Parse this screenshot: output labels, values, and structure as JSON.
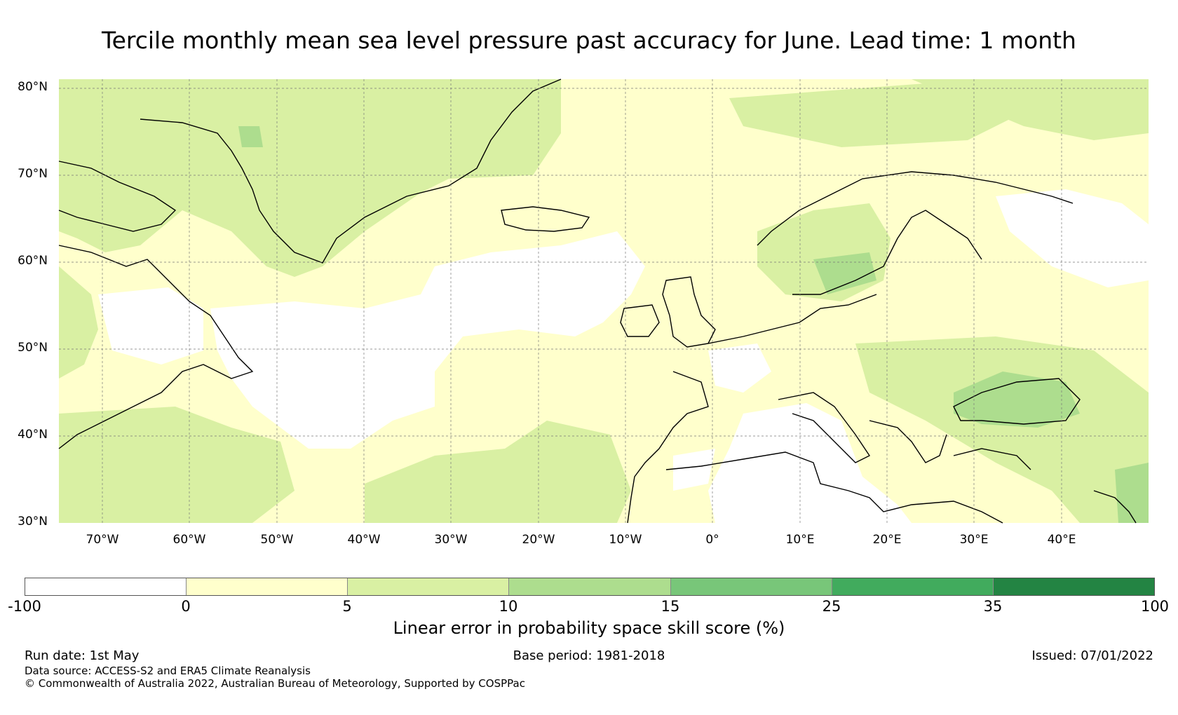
{
  "title": "Tercile monthly mean sea level pressure past accuracy for June. Lead time: 1 month",
  "map": {
    "lat_ticks": [
      "80°N",
      "70°N",
      "60°N",
      "50°N",
      "40°N",
      "30°N"
    ],
    "lon_ticks": [
      "70°W",
      "60°W",
      "50°W",
      "40°W",
      "30°W",
      "20°W",
      "10°W",
      "0°",
      "10°E",
      "20°E",
      "30°E",
      "40°E"
    ],
    "lat_range": [
      30,
      81
    ],
    "lon_range": [
      -75,
      50
    ],
    "gridlines": true
  },
  "colorbar": {
    "title": "Linear error in probability space skill score (%)",
    "tick_labels": [
      "-100",
      "0",
      "5",
      "10",
      "15",
      "25",
      "35",
      "100"
    ],
    "colors": [
      "#ffffff",
      "#ffffcc",
      "#d9f0a3",
      "#addd8e",
      "#78c679",
      "#41ab5d",
      "#238443"
    ]
  },
  "footer": {
    "run_date": "Run date: 1st May",
    "base_period": "Base period: 1981-2018",
    "issued": "Issued: 07/01/2022",
    "data_source": "Data source: ACCESS-S2 and ERA5 Climate Reanalysis",
    "copyright": "© Commonwealth of Australia 2022, Australian Bureau of Meteorology, Supported by COSPPac"
  }
}
